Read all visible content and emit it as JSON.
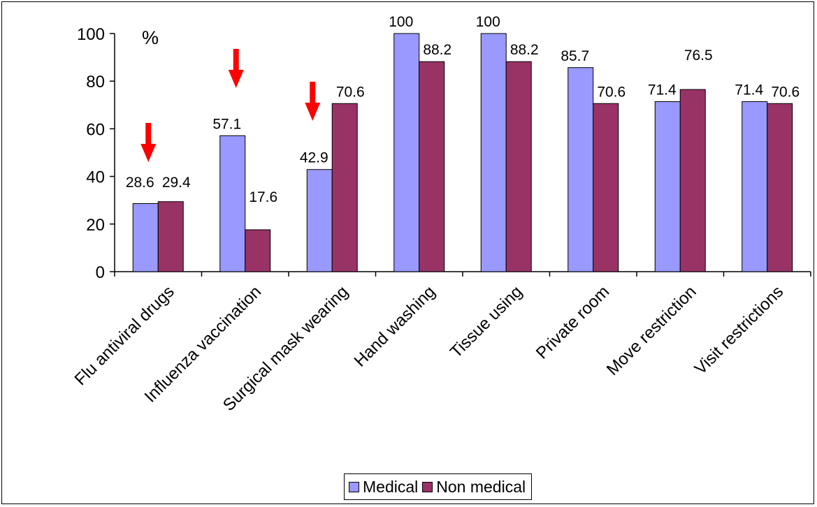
{
  "chart_data": {
    "type": "bar",
    "title": "",
    "xlabel": "",
    "ylabel": "",
    "unit_label": "%",
    "ylim": [
      0,
      100
    ],
    "yticks": [
      0,
      20,
      40,
      60,
      80,
      100
    ],
    "grid": false,
    "legend_position": "bottom",
    "categories": [
      "Flu antiviral drugs",
      "Influenza vaccination",
      "Surgical mask wearing",
      "Hand washing",
      "Tissue using",
      "Private room",
      "Move restriction",
      "Visit restrictions"
    ],
    "series": [
      {
        "name": "Medical",
        "color": "#9999ff",
        "values": [
          28.6,
          57.1,
          42.9,
          100,
          100,
          85.7,
          71.4,
          71.4
        ],
        "labels": [
          "28.6",
          "57.1",
          "42.9",
          "100",
          "100",
          "85.7",
          "71.4",
          "71.4"
        ]
      },
      {
        "name": "Non medical",
        "color": "#993366",
        "values": [
          29.4,
          17.6,
          70.6,
          88.2,
          88.2,
          70.6,
          76.5,
          70.6
        ],
        "labels": [
          "29.4",
          "17.6",
          "70.6",
          "88.2",
          "88.2",
          "70.6",
          "76.5",
          "70.6"
        ]
      }
    ],
    "annotations": [
      {
        "type": "arrow",
        "direction": "down",
        "color": "#ff0000",
        "category_index": 0
      },
      {
        "type": "arrow",
        "direction": "down",
        "color": "#ff0000",
        "category_index": 1
      },
      {
        "type": "arrow",
        "direction": "down",
        "color": "#ff0000",
        "category_index": 2
      }
    ]
  }
}
